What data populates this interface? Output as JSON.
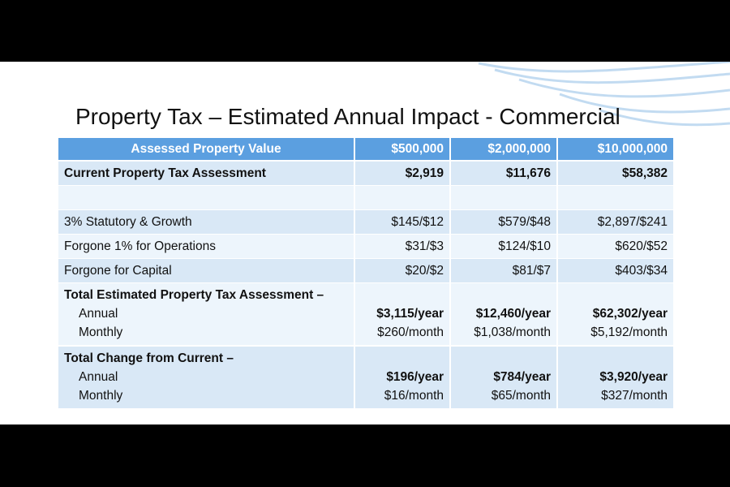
{
  "title": "Property Tax – Estimated Annual Impact - Commercial",
  "table": {
    "header": [
      "Assessed Property Value",
      "$500,000",
      "$2,000,000",
      "$10,000,000"
    ],
    "current": [
      "Current Property Tax Assessment",
      "$2,919",
      "$11,676",
      "$58,382"
    ],
    "components": [
      [
        "3% Statutory & Growth",
        "$145/$12",
        "$579/$48",
        "$2,897/$241"
      ],
      [
        "Forgone 1% for Operations",
        "$31/$3",
        "$124/$10",
        "$620/$52"
      ],
      [
        "Forgone for Capital",
        "$20/$2",
        "$81/$7",
        "$403/$34"
      ]
    ],
    "totals": [
      {
        "title": "Total Estimated Property Tax Assessment –",
        "annual": [
          "Annual",
          "$3,115/year",
          "$12,460/year",
          "$62,302/year"
        ],
        "monthly": [
          "Monthly",
          "$260/month",
          "$1,038/month",
          "$5,192/month"
        ]
      },
      {
        "title": "Total Change from Current –",
        "annual": [
          "Annual",
          "$196/year",
          "$784/year",
          "$3,920/year"
        ],
        "monthly": [
          "Monthly",
          "$16/month",
          "$65/month",
          "$327/month"
        ]
      }
    ]
  }
}
